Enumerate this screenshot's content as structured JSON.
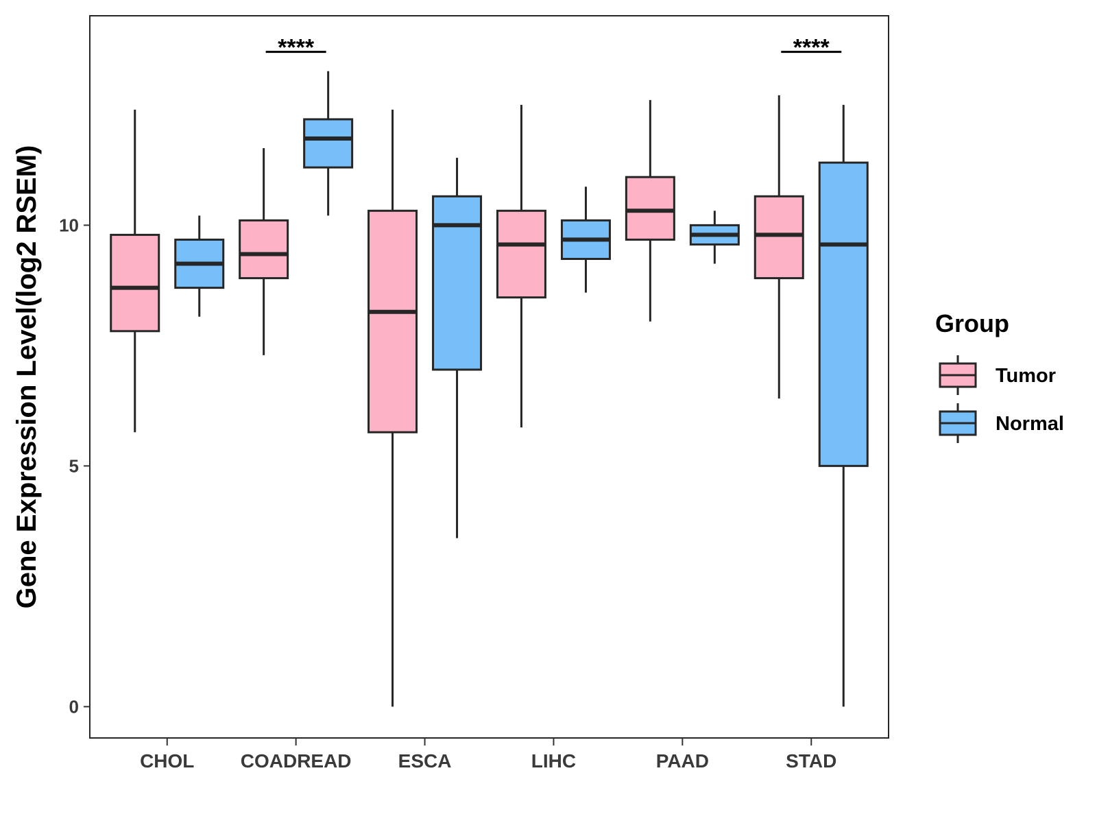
{
  "chart_data": {
    "type": "boxplot",
    "title": "",
    "xlabel": "",
    "ylabel": "Gene Expression Level(log2 RSEM)",
    "ylim": [
      -0.65,
      14.35
    ],
    "yticks": [
      0,
      5,
      10
    ],
    "categories": [
      "CHOL",
      "COADREAD",
      "ESCA",
      "LIHC",
      "PAAD",
      "STAD"
    ],
    "legend": {
      "title": "Group",
      "position": "right",
      "entries": [
        "Tumor",
        "Normal"
      ]
    },
    "colors": {
      "Tumor": "#FDB2C5",
      "Normal": "#77BFF8",
      "stroke": "#262626"
    },
    "series": [
      {
        "name": "Tumor",
        "boxes": [
          {
            "category": "CHOL",
            "min": 5.7,
            "q1": 7.8,
            "median": 8.7,
            "q3": 9.8,
            "max": 12.4
          },
          {
            "category": "COADREAD",
            "min": 7.3,
            "q1": 8.9,
            "median": 9.4,
            "q3": 10.1,
            "max": 11.6
          },
          {
            "category": "ESCA",
            "min": 0.0,
            "q1": 5.7,
            "median": 8.2,
            "q3": 10.3,
            "max": 12.4
          },
          {
            "category": "LIHC",
            "min": 5.8,
            "q1": 8.5,
            "median": 9.6,
            "q3": 10.3,
            "max": 12.5
          },
          {
            "category": "PAAD",
            "min": 8.0,
            "q1": 9.7,
            "median": 10.3,
            "q3": 11.0,
            "max": 12.6
          },
          {
            "category": "STAD",
            "min": 6.4,
            "q1": 8.9,
            "median": 9.8,
            "q3": 10.6,
            "max": 12.7
          }
        ]
      },
      {
        "name": "Normal",
        "boxes": [
          {
            "category": "CHOL",
            "min": 8.1,
            "q1": 8.7,
            "median": 9.2,
            "q3": 9.7,
            "max": 10.2
          },
          {
            "category": "COADREAD",
            "min": 10.2,
            "q1": 11.2,
            "median": 11.8,
            "q3": 12.2,
            "max": 13.2
          },
          {
            "category": "ESCA",
            "min": 3.5,
            "q1": 7.0,
            "median": 10.0,
            "q3": 10.6,
            "max": 11.4
          },
          {
            "category": "LIHC",
            "min": 8.6,
            "q1": 9.3,
            "median": 9.7,
            "q3": 10.1,
            "max": 10.8
          },
          {
            "category": "PAAD",
            "min": 9.2,
            "q1": 9.6,
            "median": 9.8,
            "q3": 10.0,
            "max": 10.3
          },
          {
            "category": "STAD",
            "min": 0.0,
            "q1": 5.0,
            "median": 9.6,
            "q3": 11.3,
            "max": 12.5
          }
        ]
      }
    ],
    "significance": [
      {
        "category": "COADREAD",
        "label": "****",
        "y": 13.6
      },
      {
        "category": "STAD",
        "label": "****",
        "y": 13.6
      }
    ]
  }
}
